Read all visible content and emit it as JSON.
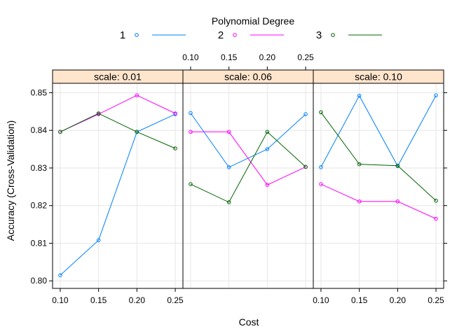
{
  "chart_data": {
    "type": "line",
    "title": "",
    "xlabel": "Cost",
    "ylabel": "Accuracy (Cross-Validation)",
    "legend": {
      "title": "Polynomial Degree",
      "placement": "top",
      "entries": [
        {
          "label": "1",
          "color": "#0080ff"
        },
        {
          "label": "2",
          "color": "#ff00ff"
        },
        {
          "label": "3",
          "color": "#006400"
        }
      ]
    },
    "x": [
      0.1,
      0.15,
      0.2,
      0.25
    ],
    "x_tick_labels": [
      "0.10",
      "0.15",
      "0.20",
      "0.25"
    ],
    "xlim": [
      0.09,
      0.26
    ],
    "ylim": [
      0.798,
      0.8525
    ],
    "y_ticks": [
      0.8,
      0.81,
      0.82,
      0.83,
      0.84,
      0.85
    ],
    "y_tick_labels": [
      "0.80",
      "0.81",
      "0.82",
      "0.83",
      "0.84",
      "0.85"
    ],
    "grid": true,
    "strip_color": "#ffe5cc",
    "panels": [
      {
        "strip": "scale: 0.01",
        "series": [
          {
            "name": "1",
            "values": [
              0.8015,
              0.8108,
              0.8396,
              0.8443
            ]
          },
          {
            "name": "2",
            "values": [
              0.8396,
              0.8443,
              0.8493,
              0.8445
            ]
          },
          {
            "name": "3",
            "values": [
              0.8396,
              0.8445,
              0.8396,
              0.8352
            ]
          }
        ]
      },
      {
        "strip": "scale: 0.06",
        "series": [
          {
            "name": "1",
            "values": [
              0.8446,
              0.8302,
              0.835,
              0.8443
            ]
          },
          {
            "name": "2",
            "values": [
              0.8396,
              0.8396,
              0.8255,
              0.8303
            ]
          },
          {
            "name": "3",
            "values": [
              0.8257,
              0.8209,
              0.8396,
              0.8303
            ]
          }
        ]
      },
      {
        "strip": "scale: 0.10",
        "series": [
          {
            "name": "1",
            "values": [
              0.8302,
              0.8492,
              0.8305,
              0.8493
            ]
          },
          {
            "name": "2",
            "values": [
              0.8257,
              0.8211,
              0.8211,
              0.8165
            ]
          },
          {
            "name": "3",
            "values": [
              0.8448,
              0.831,
              0.8306,
              0.8213
            ]
          }
        ]
      }
    ]
  }
}
